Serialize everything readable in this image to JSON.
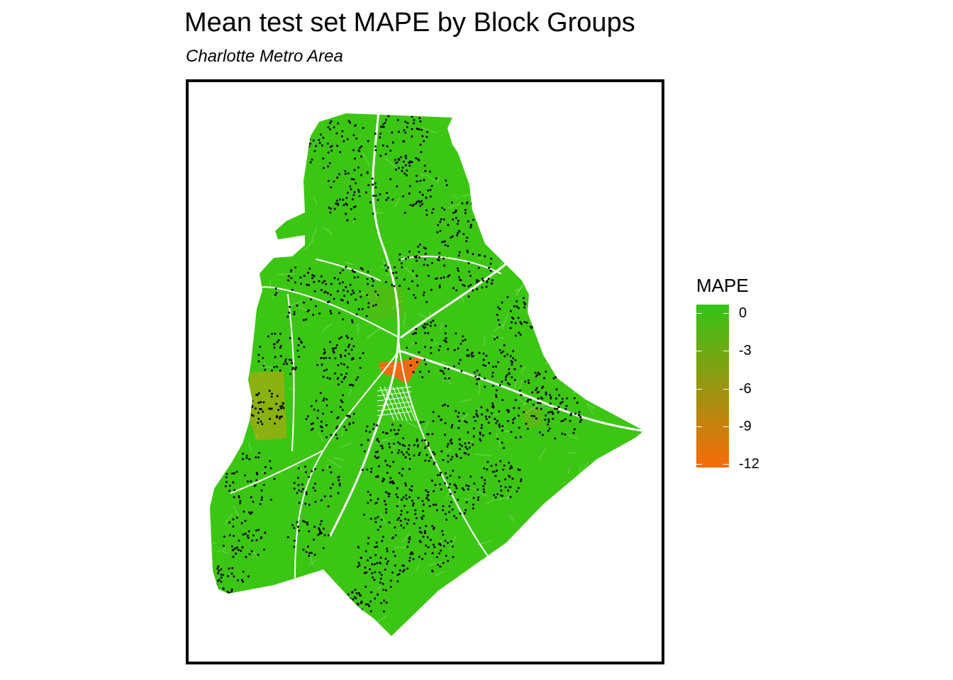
{
  "title": "Mean test set MAPE by Block Groups",
  "subtitle": "Charlotte Metro Area",
  "legend": {
    "title": "MAPE",
    "labels": [
      "0",
      "-3",
      "-6",
      "-9",
      "-12"
    ],
    "values": [
      0,
      -3,
      -6,
      -9,
      -12
    ],
    "color_high": "#33c316",
    "color_low": "#f96b0b",
    "range": [
      -12.3,
      0.7
    ]
  },
  "colors": {
    "base_fill": "#3cc614",
    "mid_fill": "#8bb110",
    "orange_fill": "#ee6a12",
    "roads": "#ffffff",
    "points": "#000000",
    "frame": "#000000"
  },
  "map": {
    "feature": "block-groups-choropleth",
    "overlay": "test-set-points"
  }
}
